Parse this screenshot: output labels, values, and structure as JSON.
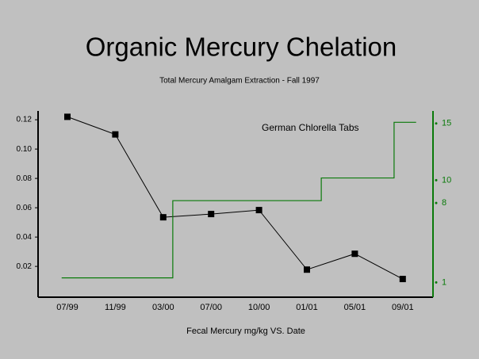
{
  "chart_data": {
    "type": "line",
    "title": "Organic Mercury Chelation",
    "subtitle": "Total Mercury Amalgam Extraction - Fall 1997",
    "x_label": "Fecal Mercury   mg/kg      VS.     Date",
    "categories": [
      "07/99",
      "11/99",
      "03/00",
      "07/00",
      "10/00",
      "01/01",
      "05/01",
      "09/01"
    ],
    "ylim": [
      -0.001,
      0.126
    ],
    "yticks": [
      {
        "value": 0.02,
        "label": "0.02"
      },
      {
        "value": 0.04,
        "label": "0.04"
      },
      {
        "value": 0.06,
        "label": "0.06"
      },
      {
        "value": 0.08,
        "label": "0.08"
      },
      {
        "value": 0.1,
        "label": "0.10"
      },
      {
        "value": 0.12,
        "label": "0.12"
      }
    ],
    "y2lim": [
      -0.3,
      16.1
    ],
    "y2ticks": [
      1,
      8,
      10,
      15
    ],
    "series": [
      {
        "name": "Fecal Mercury",
        "color": "#000000",
        "values": [
          0.122,
          0.11,
          0.0535,
          0.0557,
          0.0584,
          0.0178,
          0.0286,
          0.0114
        ]
      },
      {
        "name": "German Chlorella Tabs",
        "color": "#0a7a0a",
        "axis": "y2",
        "step": true,
        "x": [
          -0.12,
          2.2,
          5.3,
          6.82,
          7.28
        ],
        "values": [
          1.4,
          8.2,
          10.2,
          15.1,
          15.1
        ]
      }
    ]
  }
}
